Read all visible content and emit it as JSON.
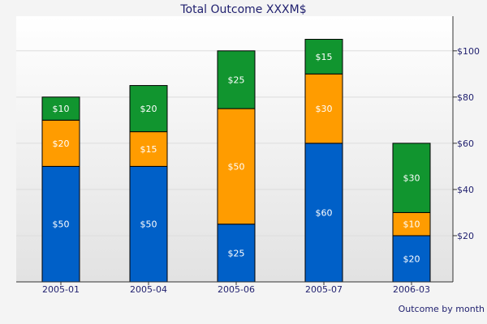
{
  "chart_data": {
    "type": "bar",
    "stacked": true,
    "title": "Total Outcome XXXM$",
    "xlabel": "Outcome by month",
    "ylabel": "",
    "categories": [
      "2005-01",
      "2005-04",
      "2005-06",
      "2005-07",
      "2006-03"
    ],
    "series": [
      {
        "values": [
          50,
          50,
          25,
          60,
          20
        ],
        "labels": [
          "$50",
          "$50",
          "$25",
          "$60",
          "$20"
        ],
        "color": "#0060c8"
      },
      {
        "values": [
          20,
          15,
          50,
          30,
          10
        ],
        "labels": [
          "$20",
          "$15",
          "$50",
          "$30",
          "$10"
        ],
        "color": "#ff9c00"
      },
      {
        "values": [
          10,
          20,
          25,
          15,
          30
        ],
        "labels": [
          "$10",
          "$20",
          "$25",
          "$15",
          "$30"
        ],
        "color": "#11952f"
      }
    ],
    "ylim": [
      0,
      115
    ],
    "yticks": [
      20,
      40,
      60,
      80,
      100
    ],
    "ytick_labels": [
      "$20",
      "$40",
      "$60",
      "$80",
      "$100"
    ],
    "y_axis_position": "right",
    "grid": true
  }
}
